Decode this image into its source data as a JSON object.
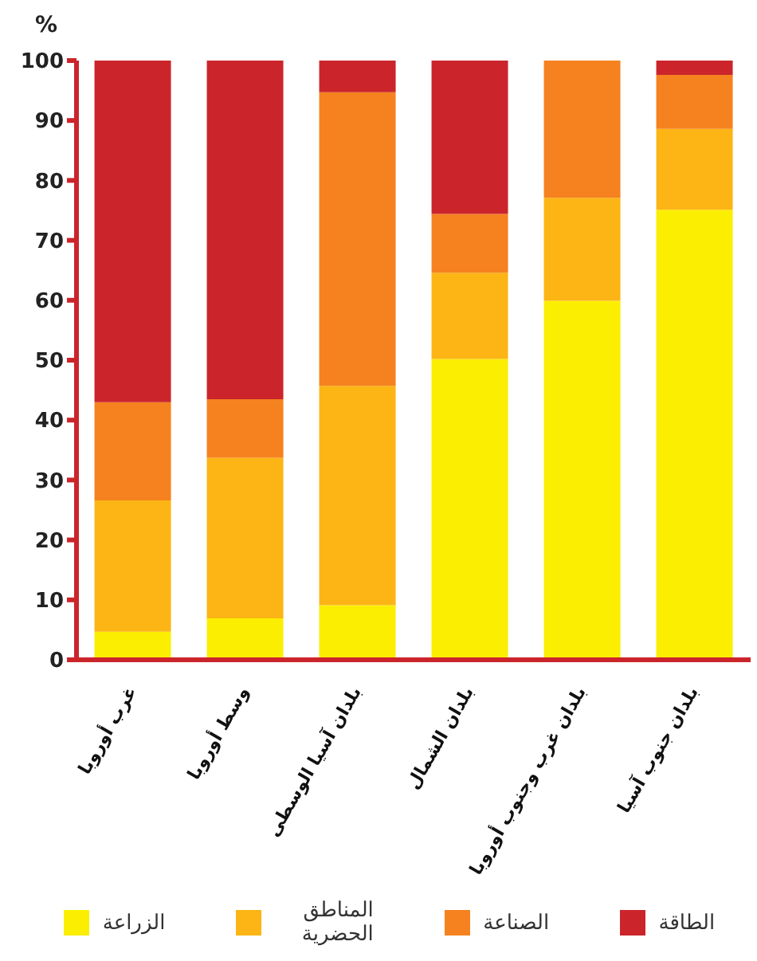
{
  "chart_data": {
    "type": "bar",
    "stacked": true,
    "ylabel": "%",
    "categories": [
      "غرب أوروبا",
      "وسط أوروبا",
      "بلدان آسيا الوسطى",
      "بلدان الشمال",
      "بلدان غرب وجنوب أوروبا",
      "بلدان جنوب آسيا"
    ],
    "series": [
      {
        "name": "الزراعة",
        "color": "#fcee00",
        "values": [
          4.7,
          6.9,
          9.1,
          50.2,
          59.9,
          75.1
        ]
      },
      {
        "name": "المناطق الحضرية",
        "color": "#fcb514",
        "values": [
          21.9,
          26.8,
          36.6,
          14.4,
          17.2,
          13.5
        ]
      },
      {
        "name": "الصناعة",
        "color": "#f5821f",
        "values": [
          16.4,
          9.8,
          49.0,
          9.8,
          22.9,
          9.0
        ]
      },
      {
        "name": "الطاقة",
        "color": "#cb252b",
        "values": [
          57.0,
          56.5,
          5.3,
          25.6,
          0,
          2.4
        ]
      }
    ],
    "ylim": [
      0,
      100
    ],
    "yticks": [
      0,
      10,
      20,
      30,
      40,
      50,
      60,
      70,
      80,
      90,
      100
    ],
    "grid": false,
    "legend": "bottom"
  }
}
